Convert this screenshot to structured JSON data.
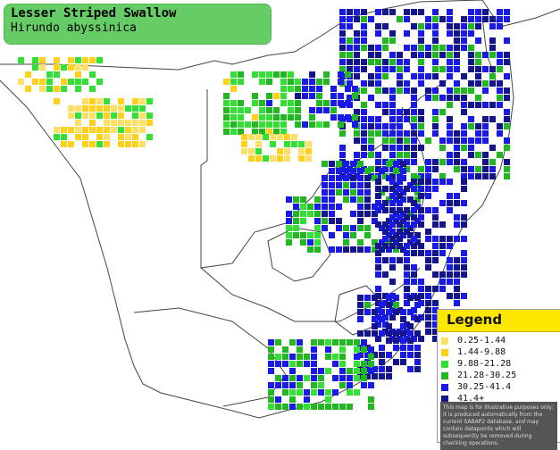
{
  "title": {
    "common_name": "Lesser Striped Swallow",
    "scientific_name": "Hirundo abyssinica"
  },
  "legend": {
    "heading": "Legend",
    "items": [
      {
        "label": "0.25-1.44",
        "color": "#ffe066"
      },
      {
        "label": "1.44-9.88",
        "color": "#ffd11a"
      },
      {
        "label": "9.88-21.28",
        "color": "#33e033"
      },
      {
        "label": "21.28-30.25",
        "color": "#22b822"
      },
      {
        "label": "30.25-41.4",
        "color": "#1a1ae6"
      },
      {
        "label": "41.4+",
        "color": "#14148c"
      }
    ],
    "note": "This map is for illustrative purposes only; it is produced automatically from the current SABAP2 database, and may contain datapoints which will subsequently be removed during checking operations."
  },
  "map_colors": {
    "border": "#444444",
    "land": "#ffffff",
    "grid": "#ffffff"
  }
}
